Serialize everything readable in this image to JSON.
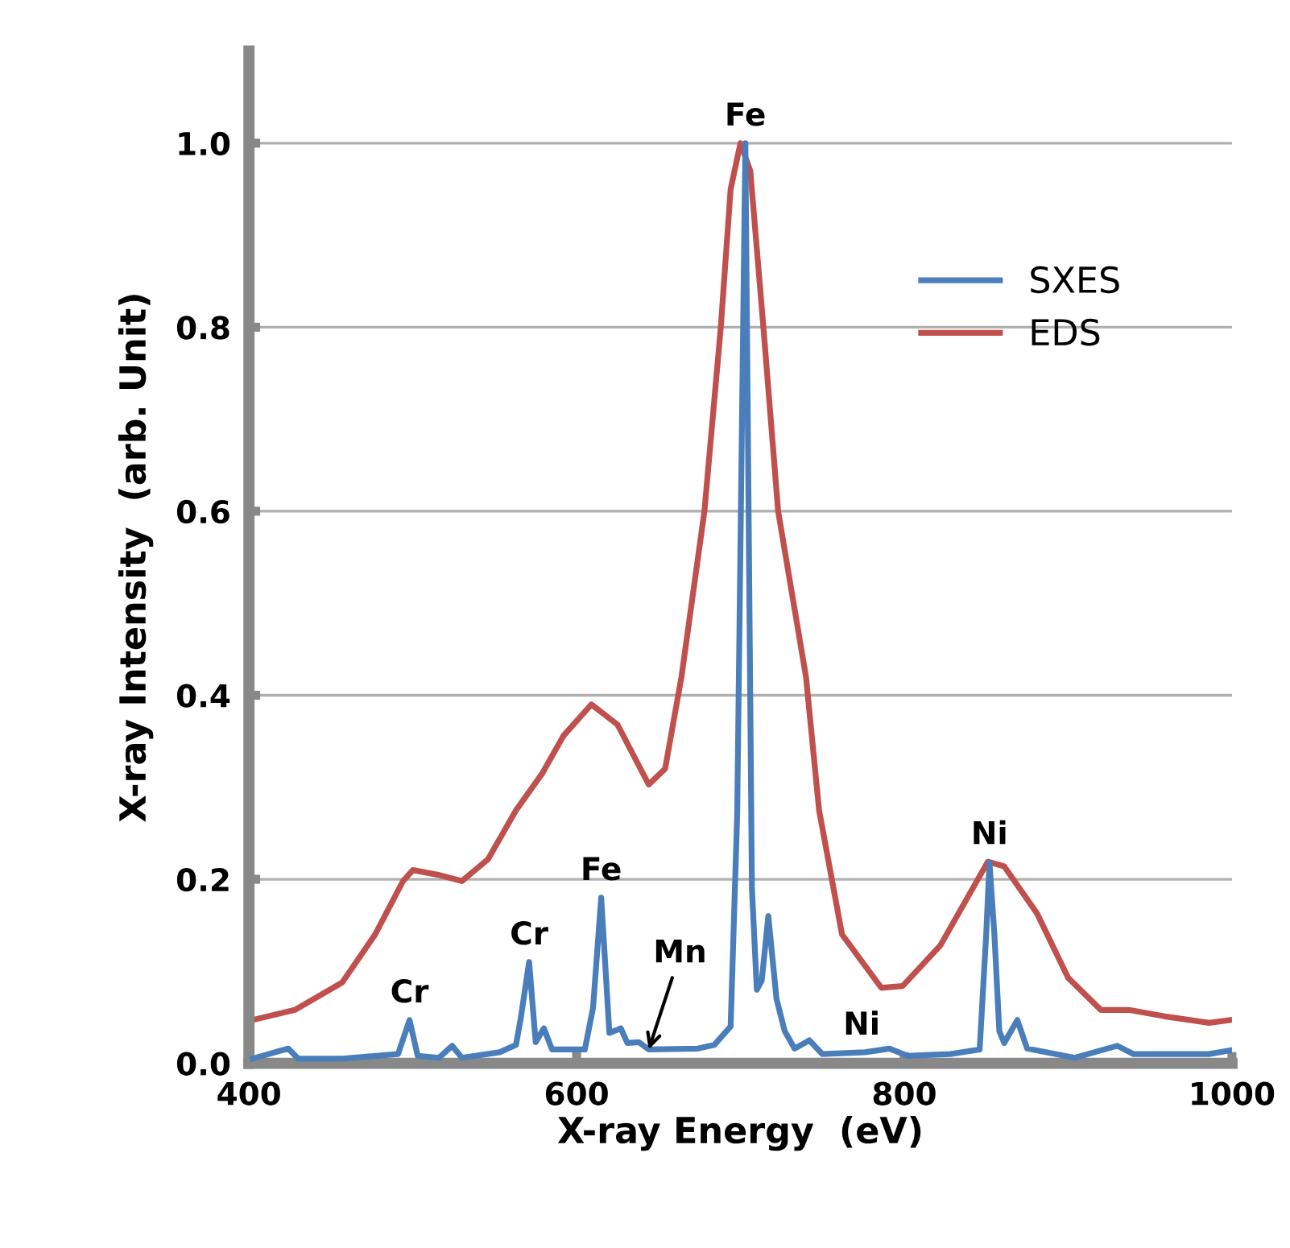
{
  "chart_data": {
    "type": "line",
    "xlabel": "X-ray Energy  (eV)",
    "ylabel": "X-ray Intensity  (arb. Unit)",
    "xlim": [
      400,
      1000
    ],
    "xticks": [
      400,
      600,
      800,
      1000
    ],
    "ylim": [
      0,
      1.1
    ],
    "yticks": [
      {
        "value": 0,
        "label": "0.0"
      },
      0.2,
      0.4,
      0.6,
      0.8,
      {
        "value": 1,
        "label": "1.0"
      }
    ],
    "grid": "y",
    "legend": "top right",
    "marker": "none",
    "line_style": "solid",
    "series": [
      {
        "name": "SXES",
        "color": "#4a7ebb",
        "x": [
          402,
          424,
          430,
          457,
          491,
          498,
          503,
          516,
          524,
          530,
          553,
          563,
          566,
          571,
          575,
          580,
          585,
          605,
          610,
          615,
          620,
          627,
          631,
          638,
          644,
          674,
          684,
          694,
          698,
          703,
          707,
          710,
          713,
          717,
          722,
          727,
          733,
          742,
          750,
          776,
          791,
          802,
          828,
          846,
          850,
          852,
          855,
          858,
          861,
          869,
          875,
          904,
          930,
          940,
          986,
          999
        ],
        "values": [
          0.005,
          0.016,
          0.005,
          0.005,
          0.01,
          0.047,
          0.008,
          0.006,
          0.019,
          0.006,
          0.012,
          0.02,
          0.05,
          0.11,
          0.023,
          0.038,
          0.015,
          0.015,
          0.06,
          0.18,
          0.033,
          0.038,
          0.022,
          0.023,
          0.015,
          0.016,
          0.02,
          0.04,
          0.27,
          1.0,
          0.19,
          0.08,
          0.09,
          0.16,
          0.07,
          0.035,
          0.016,
          0.025,
          0.01,
          0.012,
          0.016,
          0.008,
          0.01,
          0.015,
          0.14,
          0.218,
          0.14,
          0.035,
          0.022,
          0.047,
          0.016,
          0.006,
          0.019,
          0.01,
          0.01,
          0.014
        ]
      },
      {
        "name": "EDS",
        "color": "#c0504d",
        "x": [
          402,
          428,
          457,
          477,
          494,
          500,
          515,
          530,
          546,
          563,
          579,
          592,
          609,
          625,
          644,
          654,
          664,
          678,
          688,
          694,
          700,
          706,
          714,
          723,
          740,
          748,
          762,
          786,
          799,
          822,
          851,
          861,
          881,
          900,
          920,
          937,
          959,
          986,
          999
        ],
        "values": [
          0.047,
          0.058,
          0.088,
          0.14,
          0.198,
          0.21,
          0.205,
          0.198,
          0.222,
          0.275,
          0.315,
          0.356,
          0.39,
          0.368,
          0.303,
          0.32,
          0.42,
          0.6,
          0.8,
          0.95,
          1.0,
          0.97,
          0.8,
          0.6,
          0.42,
          0.275,
          0.14,
          0.082,
          0.084,
          0.128,
          0.219,
          0.214,
          0.163,
          0.093,
          0.058,
          0.058,
          0.051,
          0.044,
          0.047
        ]
      }
    ],
    "annotations": [
      {
        "text": "Fe",
        "x": 703,
        "y": 1.0
      },
      {
        "text": "Cr",
        "x": 498,
        "y": 0.047
      },
      {
        "text": "Cr",
        "x": 571,
        "y": 0.11
      },
      {
        "text": "Fe",
        "x": 615,
        "y": 0.18
      },
      {
        "text": "Mn",
        "x": 644,
        "y": 0.015
      },
      {
        "text": "Ni",
        "x": 774,
        "y": 0.012
      },
      {
        "text": "Ni",
        "x": 852,
        "y": 0.219
      }
    ]
  }
}
